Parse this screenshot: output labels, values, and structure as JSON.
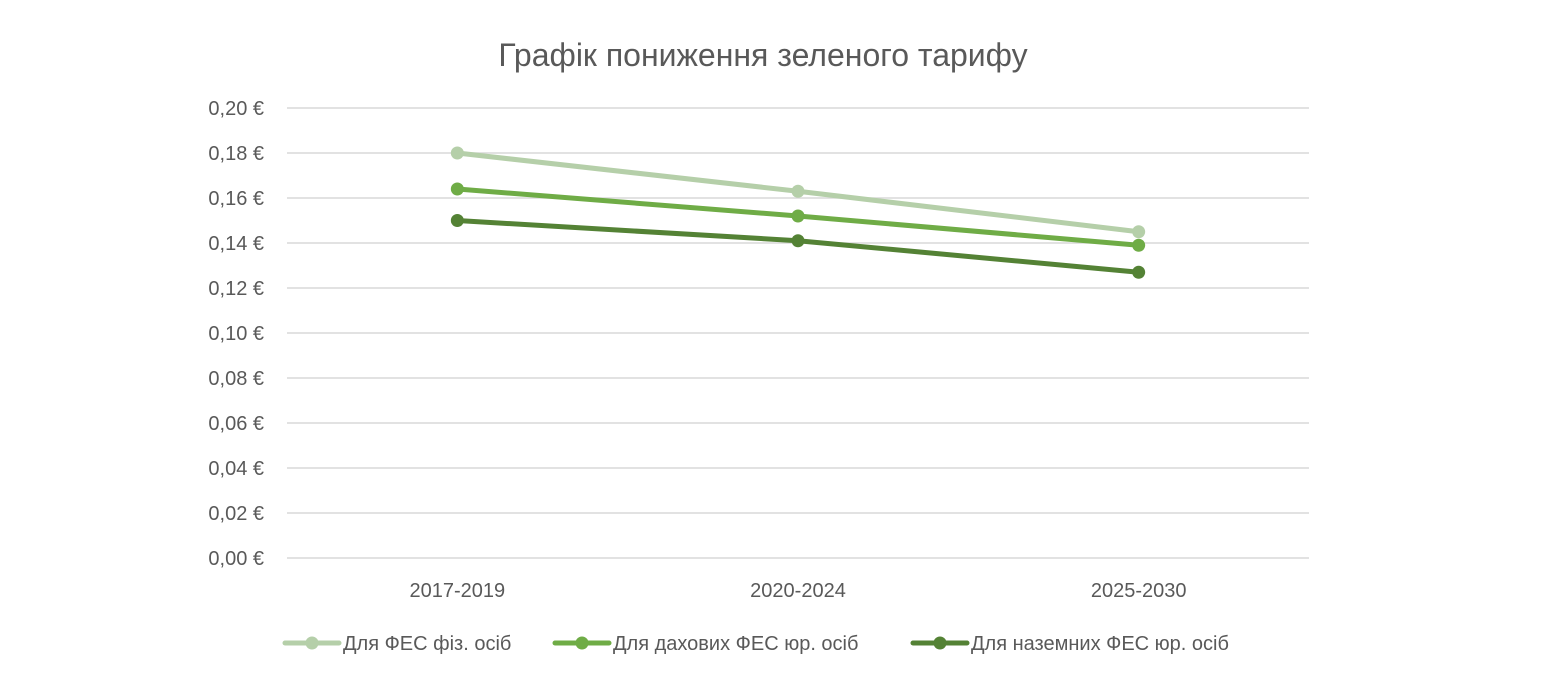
{
  "chart_data": {
    "type": "line",
    "title": "Графік пониження зеленого тарифу",
    "categories": [
      "2017-2019",
      "2020-2024",
      "2025-2030"
    ],
    "ylim": [
      0,
      0.2
    ],
    "yticks": [
      0,
      0.02,
      0.04,
      0.06,
      0.08,
      0.1,
      0.12,
      0.14,
      0.16,
      0.18,
      0.2
    ],
    "ytick_labels": [
      "0,00 €",
      "0,02 €",
      "0,04 €",
      "0,06 €",
      "0,08 €",
      "0,10 €",
      "0,12 €",
      "0,14 €",
      "0,16 €",
      "0,18 €",
      "0,20 €"
    ],
    "grid": true,
    "legend_position": "bottom",
    "series": [
      {
        "name": "Для ФЕС фіз. осіб",
        "values": [
          0.18,
          0.163,
          0.145
        ],
        "color": "#b5cfa9"
      },
      {
        "name": "Для дахових ФЕС юр. осіб",
        "values": [
          0.164,
          0.152,
          0.139
        ],
        "color": "#6fac46"
      },
      {
        "name": "Для наземних ФЕС юр. осіб",
        "values": [
          0.15,
          0.141,
          0.127
        ],
        "color": "#548235"
      }
    ]
  }
}
